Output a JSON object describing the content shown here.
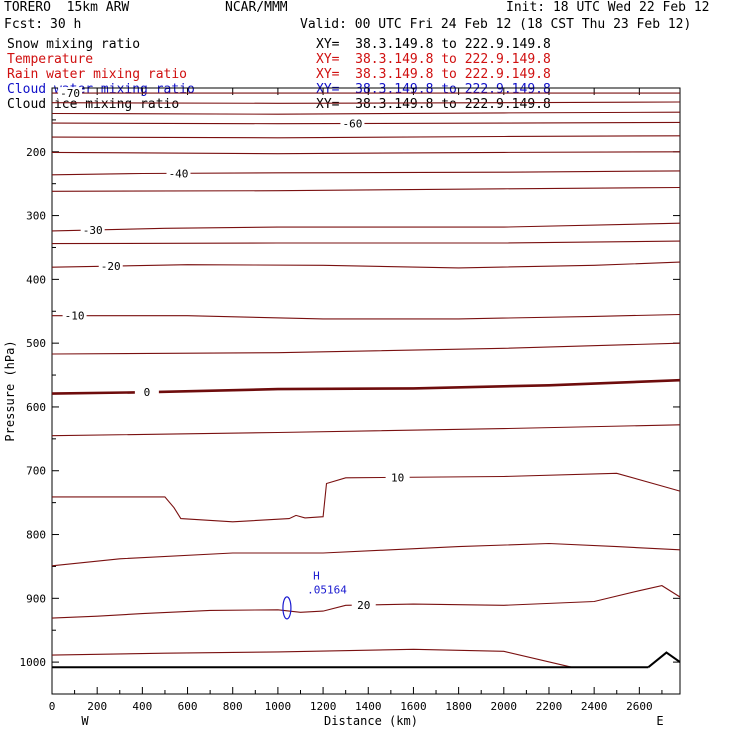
{
  "header": {
    "model": "TORERO  15km ARW",
    "center": "NCAR/MMM",
    "init": "Init: 18 UTC Wed 22 Feb 12",
    "fcst_label": "Fcst:",
    "fcst_value": "30 h",
    "valid": "Valid: 00 UTC Fri 24 Feb 12 (18 CST Thu 23 Feb 12)"
  },
  "legend": [
    {
      "name": "Snow mixing ratio",
      "color": "#000000",
      "xy": "XY=  38.3.149.8 to 222.9.149.8",
      "xy_color": "#000000"
    },
    {
      "name": "Temperature",
      "color": "#d01010",
      "xy": "XY=  38.3.149.8 to 222.9.149.8",
      "xy_color": "#d01010"
    },
    {
      "name": "Rain water mixing ratio",
      "color": "#d01010",
      "xy": "XY=  38.3.149.8 to 222.9.149.8",
      "xy_color": "#d01010"
    },
    {
      "name": "Cloud water mixing ratio",
      "color": "#1010c8",
      "xy": "XY=  38.3.149.8 to 222.9.149.8",
      "xy_color": "#1010c8"
    },
    {
      "name": "Cloud ice mixing ratio",
      "color": "#000000",
      "xy": "XY=  38.3.149.8 to 222.9.149.8",
      "xy_color": "#000000"
    }
  ],
  "chart_data": {
    "type": "line",
    "title": "",
    "xlabel": "Distance (km)",
    "ylabel": "Pressure (hPa)",
    "xlim": [
      0,
      2780
    ],
    "ylim": [
      1050,
      100
    ],
    "x_ticks": [
      0,
      200,
      400,
      600,
      800,
      1000,
      1200,
      1400,
      1600,
      1800,
      2000,
      2200,
      2400,
      2600
    ],
    "y_ticks": [
      200,
      300,
      400,
      500,
      600,
      700,
      800,
      900,
      1000
    ],
    "left_end_label": "W",
    "right_end_label": "E",
    "colors": {
      "temperature": "#7a1010",
      "freezing": "#6e0c0c",
      "cloud_water": "#1a1ad0",
      "ground": "#000000"
    },
    "temperature_isotherms": [
      {
        "label": "-70",
        "points": [
          [
            0,
            108
          ],
          [
            2780,
            108
          ]
        ],
        "label_x": 80
      },
      {
        "label": "",
        "points": [
          [
            0,
            123
          ],
          [
            1000,
            124
          ],
          [
            2000,
            123
          ],
          [
            2780,
            122
          ]
        ]
      },
      {
        "label": "",
        "points": [
          [
            0,
            140
          ],
          [
            1000,
            141
          ],
          [
            2000,
            139
          ],
          [
            2780,
            138
          ]
        ]
      },
      {
        "label": "-60",
        "points": [
          [
            0,
            155
          ],
          [
            1000,
            156
          ],
          [
            2000,
            155
          ],
          [
            2780,
            154
          ]
        ],
        "label_x": 1330
      },
      {
        "label": "",
        "points": [
          [
            0,
            177
          ],
          [
            1000,
            178
          ],
          [
            2000,
            176
          ],
          [
            2780,
            175
          ]
        ]
      },
      {
        "label": "",
        "points": [
          [
            0,
            201
          ],
          [
            1000,
            203
          ],
          [
            2000,
            201
          ],
          [
            2780,
            200
          ]
        ]
      },
      {
        "label": "-40",
        "points": [
          [
            0,
            236
          ],
          [
            400,
            234
          ],
          [
            1000,
            233
          ],
          [
            2000,
            232
          ],
          [
            2780,
            230
          ]
        ],
        "label_x": 560
      },
      {
        "label": "",
        "points": [
          [
            0,
            262
          ],
          [
            1000,
            261
          ],
          [
            2000,
            258
          ],
          [
            2780,
            256
          ]
        ]
      },
      {
        "label": "-30",
        "points": [
          [
            0,
            324
          ],
          [
            500,
            320
          ],
          [
            1000,
            318
          ],
          [
            1500,
            318
          ],
          [
            2000,
            318
          ],
          [
            2780,
            312
          ]
        ],
        "label_x": 180
      },
      {
        "label": "",
        "points": [
          [
            0,
            344
          ],
          [
            1000,
            343
          ],
          [
            2000,
            343
          ],
          [
            2780,
            340
          ]
        ]
      },
      {
        "label": "-20",
        "points": [
          [
            0,
            381
          ],
          [
            600,
            377
          ],
          [
            1200,
            378
          ],
          [
            1800,
            382
          ],
          [
            2400,
            378
          ],
          [
            2780,
            373
          ]
        ],
        "label_x": 260
      },
      {
        "label": "-10",
        "points": [
          [
            0,
            457
          ],
          [
            600,
            457
          ],
          [
            1200,
            462
          ],
          [
            1800,
            462
          ],
          [
            2400,
            458
          ],
          [
            2780,
            455
          ]
        ],
        "label_x": 100
      },
      {
        "label": "",
        "points": [
          [
            0,
            517
          ],
          [
            1000,
            515
          ],
          [
            2000,
            508
          ],
          [
            2780,
            500
          ]
        ]
      },
      {
        "label": "0",
        "points": [
          [
            0,
            579
          ],
          [
            400,
            577
          ],
          [
            1000,
            572
          ],
          [
            1600,
            571
          ],
          [
            2200,
            566
          ],
          [
            2780,
            558
          ]
        ],
        "label_x": 420,
        "bold": true
      },
      {
        "label": "",
        "points": [
          [
            0,
            645
          ],
          [
            1000,
            640
          ],
          [
            2000,
            634
          ],
          [
            2780,
            628
          ]
        ]
      },
      {
        "label": "10",
        "points": [
          [
            0,
            741
          ],
          [
            500,
            741
          ],
          [
            540,
            758
          ],
          [
            570,
            775
          ],
          [
            800,
            780
          ],
          [
            1050,
            775
          ],
          [
            1080,
            770
          ],
          [
            1120,
            774
          ],
          [
            1200,
            772
          ],
          [
            1215,
            720
          ],
          [
            1300,
            711
          ],
          [
            2000,
            709
          ],
          [
            2500,
            704
          ],
          [
            2700,
            724
          ],
          [
            2780,
            732
          ]
        ],
        "label_x": 1530
      },
      {
        "label": "",
        "points": [
          [
            0,
            849
          ],
          [
            300,
            838
          ],
          [
            800,
            829
          ],
          [
            1200,
            829
          ],
          [
            1500,
            824
          ],
          [
            1800,
            819
          ],
          [
            2200,
            814
          ],
          [
            2500,
            819
          ],
          [
            2780,
            824
          ]
        ]
      },
      {
        "label": "20",
        "points": [
          [
            0,
            931
          ],
          [
            200,
            928
          ],
          [
            400,
            924
          ],
          [
            700,
            919
          ],
          [
            1000,
            918
          ],
          [
            1100,
            922
          ],
          [
            1200,
            920
          ],
          [
            1300,
            911
          ],
          [
            1600,
            909
          ],
          [
            2000,
            911
          ],
          [
            2400,
            905
          ],
          [
            2600,
            888
          ],
          [
            2700,
            880
          ],
          [
            2780,
            898
          ]
        ],
        "label_x": 1380
      },
      {
        "label": "",
        "points": [
          [
            0,
            989
          ],
          [
            500,
            986
          ],
          [
            1000,
            984
          ],
          [
            1600,
            980
          ],
          [
            2000,
            983
          ],
          [
            2300,
            1008
          ]
        ]
      }
    ],
    "cloud_water_max": {
      "label": "H",
      "value": ".05164",
      "x": 1200,
      "p": 847
    },
    "cloud_water_contour": {
      "x": 1040,
      "p": 915
    },
    "ground_pressure": 1008
  }
}
